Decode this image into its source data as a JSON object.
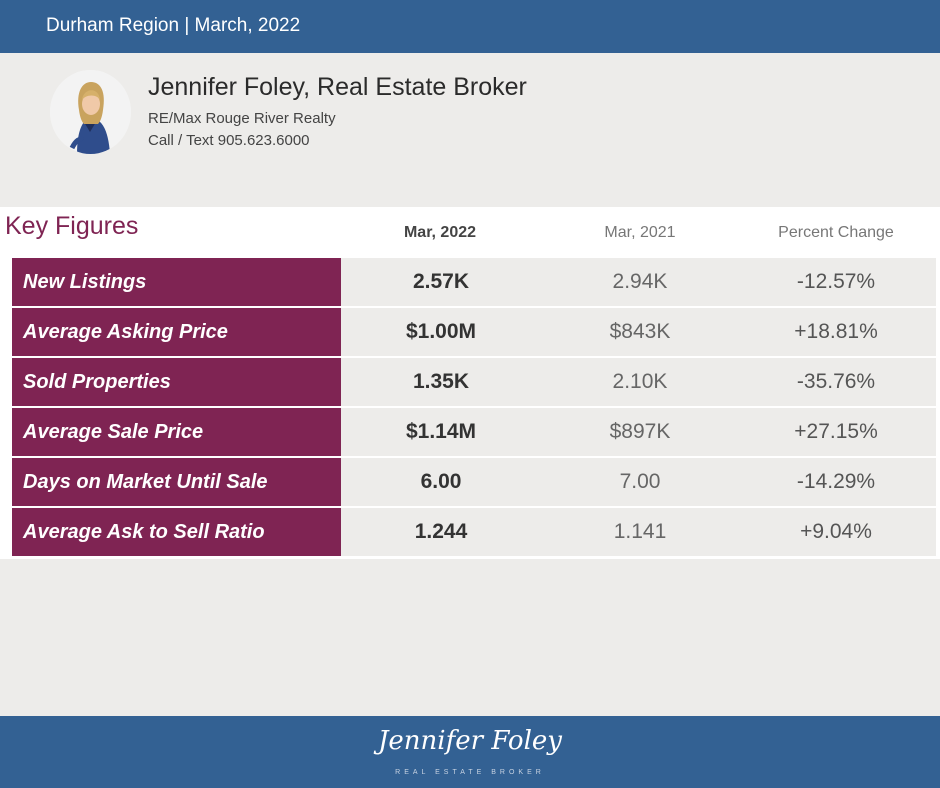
{
  "header": {
    "title": "Durham Region | March, 2022"
  },
  "profile": {
    "name": "Jennifer Foley, Real Estate Broker",
    "agency": "RE/Max Rouge River Realty",
    "phone": "Call / Text 905.623.6000"
  },
  "figures": {
    "title": "Key Figures",
    "columns": [
      "Mar, 2022",
      "Mar, 2021",
      "Percent Change"
    ],
    "rows": [
      {
        "label": "New Listings",
        "current": "2.57K",
        "previous": "2.94K",
        "change": "-12.57%"
      },
      {
        "label": "Average Asking Price",
        "current": "$1.00M",
        "previous": "$843K",
        "change": "+18.81%"
      },
      {
        "label": "Sold Properties",
        "current": "1.35K",
        "previous": "2.10K",
        "change": "-35.76%"
      },
      {
        "label": "Average Sale Price",
        "current": "$1.14M",
        "previous": "$897K",
        "change": "+27.15%"
      },
      {
        "label": "Days on Market Until Sale",
        "current": "6.00",
        "previous": "7.00",
        "change": "-14.29%"
      },
      {
        "label": "Average Ask to Sell Ratio",
        "current": "1.244",
        "previous": "1.141",
        "change": "+9.04%"
      }
    ]
  },
  "footer": {
    "logo_name": "Jennifer Foley",
    "logo_subtitle": "REAL ESTATE BROKER"
  },
  "colors": {
    "header": "#336193",
    "accent": "#7f2453",
    "background": "#edecea"
  }
}
